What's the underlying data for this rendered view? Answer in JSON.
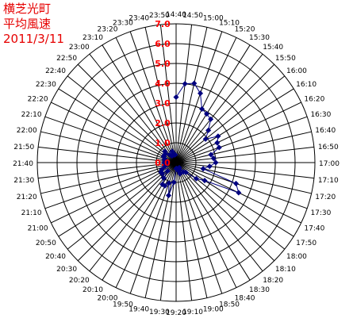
{
  "title_lines": [
    "横芝光町",
    "平均風速",
    "2011/3/11"
  ],
  "chart_data": {
    "type": "polar-line",
    "angle_labels": [
      "14:40",
      "14:50",
      "15:00",
      "15:10",
      "15:20",
      "15:30",
      "15:40",
      "15:50",
      "16:00",
      "16:10",
      "16:20",
      "16:30",
      "16:40",
      "16:50",
      "17:00",
      "17:10",
      "17:20",
      "17:30",
      "17:40",
      "17:50",
      "18:00",
      "18:10",
      "18:20",
      "18:30",
      "18:40",
      "18:50",
      "19:00",
      "19:10",
      "19:20",
      "19:30",
      "19:40",
      "19:50",
      "20:00",
      "20:10",
      "20:20",
      "20:30",
      "20:40",
      "20:50",
      "21:00",
      "21:10",
      "21:20",
      "21:30",
      "21:40",
      "21:50",
      "22:00",
      "22:10",
      "22:20",
      "22:30",
      "22:40",
      "22:50",
      "23:00",
      "23:10",
      "23:20",
      "23:30",
      "23:40",
      "23:50"
    ],
    "radial_ticks": [
      "0.0",
      "1.0",
      "2.0",
      "3.0",
      "4.0",
      "5.0",
      "6.0",
      "7.0"
    ],
    "rmax": 7,
    "series": [
      {
        "values": [
          3.3,
          4.0,
          4.1,
          3.7,
          3.0,
          2.9,
          2.8,
          2.3,
          1.9,
          2.5,
          2.3,
          2.3,
          1.8,
          1.9,
          2.0,
          1.7,
          1.4,
          3.2,
          3.5,
          1.7,
          1.3,
          0.7,
          0.6,
          0.3,
          0.4,
          0.6,
          0.4,
          0.3,
          0.3,
          1.0,
          1.7,
          1.1,
          1.3,
          1.3,
          1.0,
          0.6,
          0.9,
          0.9,
          0.8,
          0.6,
          0.5,
          0.5,
          0.6,
          0.5,
          0.6,
          0.6,
          0.7,
          0.7,
          0.7,
          0.8,
          0.5,
          0.4,
          0.4,
          0.6,
          0.4,
          0.4
        ],
        "color": "#000080"
      }
    ],
    "grid": true,
    "tick_color": "#ff0000"
  }
}
